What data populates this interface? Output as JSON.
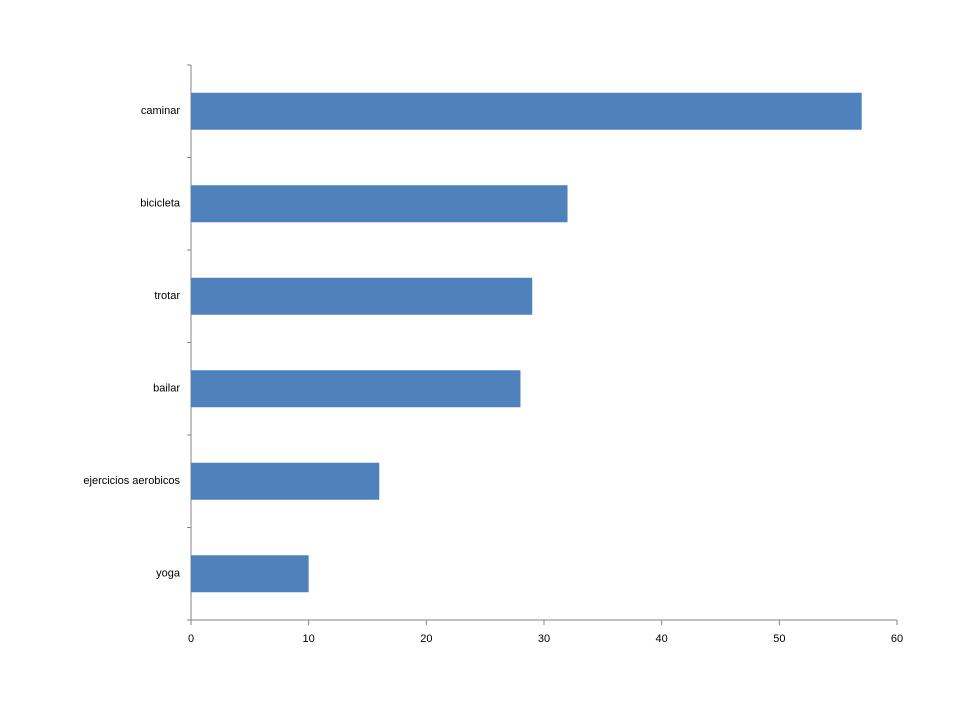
{
  "chart_data": {
    "type": "bar",
    "orientation": "horizontal",
    "categories": [
      "caminar",
      "bicicleta",
      "trotar",
      "bailar",
      "ejercicios aerobicos",
      "yoga"
    ],
    "values": [
      57,
      32,
      29,
      28,
      16,
      10
    ],
    "color": "#4f81bd",
    "xlim": [
      0,
      60
    ],
    "xticks": [
      0,
      10,
      20,
      30,
      40,
      50,
      60
    ],
    "grid": false
  }
}
